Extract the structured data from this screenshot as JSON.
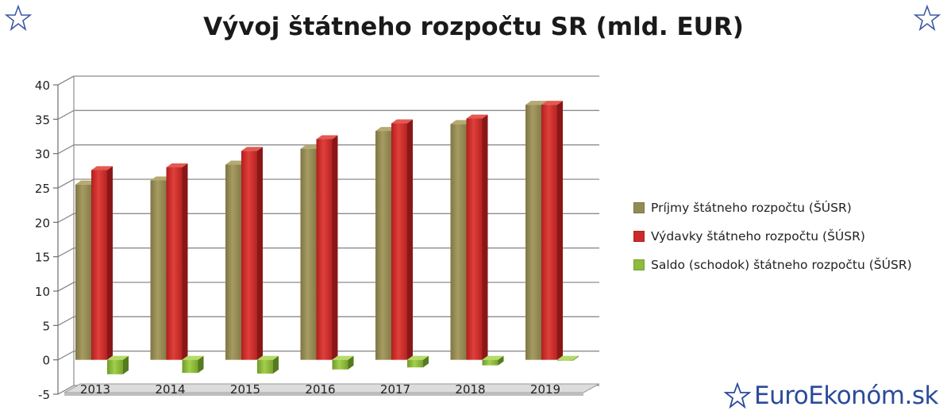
{
  "chart_data": {
    "type": "bar",
    "title": "Vývoj štátneho rozpočtu SR (mld. EUR)",
    "categories": [
      "2013",
      "2014",
      "2015",
      "2016",
      "2017",
      "2018",
      "2019"
    ],
    "series": [
      {
        "name": "Príjmy štátneho rozpočtu (ŠÚSR)",
        "color": "#948a54",
        "values": [
          25.5,
          26.1,
          28.4,
          30.7,
          33.3,
          34.3,
          37.1
        ]
      },
      {
        "name": "Výdavky štátneho rozpočtu (ŠÚSR)",
        "color": "#cc2a2a",
        "values": [
          27.6,
          28.0,
          30.4,
          32.1,
          34.4,
          35.1,
          37.1
        ]
      },
      {
        "name": "Saldo (schodok) štátneho rozpočtu (ŠÚSR)",
        "color": "#8dbb3c",
        "values": [
          -2.1,
          -1.9,
          -2.0,
          -1.4,
          -1.1,
          -0.8,
          -0.1
        ]
      }
    ],
    "yticks": [
      -5,
      0,
      5,
      10,
      15,
      20,
      25,
      30,
      35,
      40
    ],
    "ylim": [
      -5,
      40
    ],
    "grid": true,
    "legend_position": "right"
  },
  "brand": {
    "name": "EuroEkonóm.sk",
    "icon": "star-icon"
  }
}
